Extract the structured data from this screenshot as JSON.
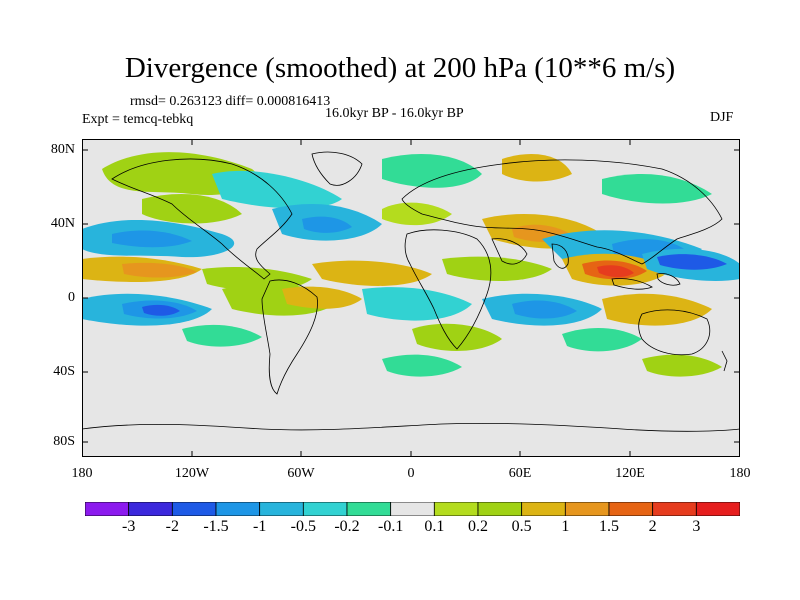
{
  "title": "Divergence (smoothed) at 200 hPa (10**6 m/s)",
  "stats": "rmsd= 0.263123 diff= 0.000816413",
  "experiment": "Expt = temcq-tebkq",
  "period": "16.0kyr BP - 16.0kyr BP",
  "season": "DJF",
  "y_ticks": [
    "80N",
    "40N",
    "0",
    "40S",
    "80S"
  ],
  "x_ticks": [
    "180",
    "120W",
    "60W",
    "0",
    "60E",
    "120E",
    "180"
  ],
  "colorbar": {
    "labels": [
      "-3",
      "-2",
      "-1.5",
      "-1",
      "-0.5",
      "-0.2",
      "-0.1",
      "0.1",
      "0.2",
      "0.5",
      "1",
      "1.5",
      "2",
      "3"
    ],
    "colors": [
      "#8c1aee",
      "#3c28dc",
      "#1e5ae6",
      "#1e96e6",
      "#28b4dc",
      "#32d2d2",
      "#32dc96",
      "#e6e6e6",
      "#b4dc1e",
      "#a0d214",
      "#dcb414",
      "#e6961e",
      "#e66414",
      "#e63c1e",
      "#e61e1e"
    ]
  }
}
